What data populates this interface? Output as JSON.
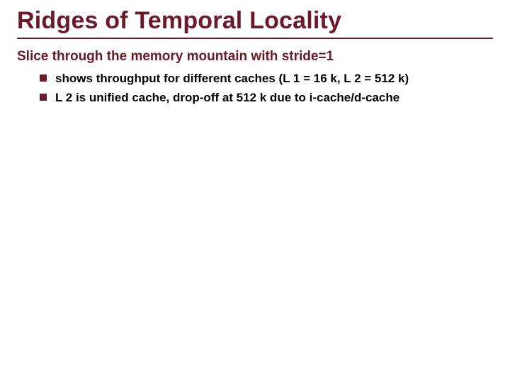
{
  "colors": {
    "title": "#6b1a2b",
    "rule": "#6b1a2b",
    "subhead": "#6b1a2b",
    "bullet_square": "#6b1a2b",
    "body_text": "#000000",
    "background": "#ffffff"
  },
  "title": "Ridges of Temporal Locality",
  "subhead": "Slice through the memory mountain with stride=1",
  "bullets": [
    "shows throughput for different caches (L 1 = 16 k, L 2 = 512 k)",
    "L 2 is unified cache, drop-off at 512 k due to i-cache/d-cache"
  ]
}
